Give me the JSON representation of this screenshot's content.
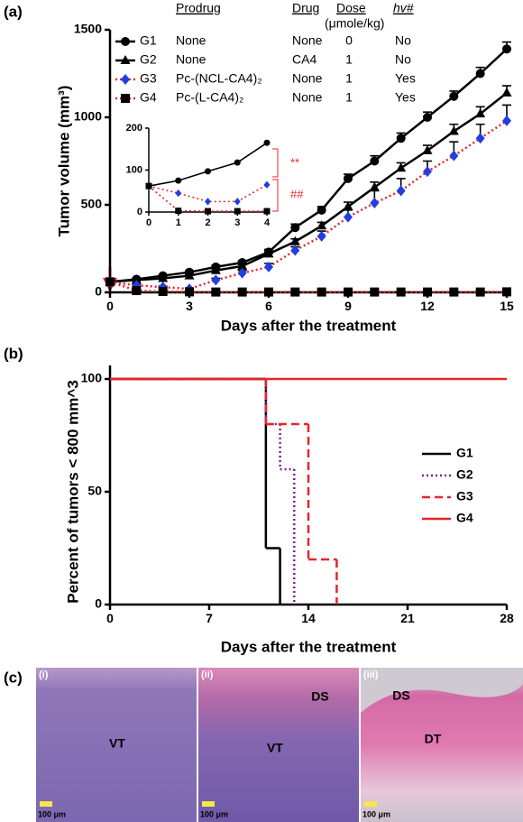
{
  "panel_labels": [
    "(a)",
    "(b)",
    "(c)"
  ],
  "chart_data": [
    {
      "type": "line",
      "xlabel": "Days after the treatment",
      "ylabel": "Tumor volume (mm³)",
      "xlim": [
        0,
        15
      ],
      "ylim": [
        0,
        1500
      ],
      "xticks": [
        0,
        3,
        6,
        9,
        12,
        15
      ],
      "yticks": [
        0,
        500,
        1000,
        1500
      ],
      "x": [
        0,
        1,
        2,
        3,
        4,
        5,
        6,
        7,
        8,
        9,
        10,
        11,
        12,
        13,
        14,
        15
      ],
      "series": [
        {
          "name": "G1",
          "color": "#000000",
          "marker": "circle",
          "marker_color": "#000000",
          "dash": "solid",
          "values": [
            60,
            75,
            95,
            115,
            145,
            170,
            230,
            370,
            470,
            650,
            750,
            880,
            1000,
            1120,
            1250,
            1390
          ],
          "errors": [
            5,
            5,
            5,
            8,
            10,
            10,
            15,
            20,
            20,
            25,
            30,
            30,
            30,
            30,
            35,
            40
          ]
        },
        {
          "name": "G2",
          "color": "#000000",
          "marker": "triangle",
          "marker_color": "#000000",
          "dash": "solid",
          "values": [
            60,
            70,
            80,
            95,
            125,
            150,
            220,
            290,
            380,
            490,
            600,
            710,
            810,
            920,
            1020,
            1140
          ],
          "errors": [
            5,
            5,
            5,
            8,
            10,
            10,
            15,
            15,
            20,
            25,
            30,
            30,
            30,
            40,
            40,
            40
          ]
        },
        {
          "name": "G3",
          "color": "#e8242a",
          "marker": "diamond",
          "marker_color": "#1f3fe0",
          "dash": "dotted",
          "values": [
            60,
            40,
            30,
            20,
            70,
            110,
            145,
            240,
            320,
            430,
            510,
            580,
            690,
            780,
            880,
            980
          ],
          "errors": [
            5,
            5,
            5,
            5,
            10,
            15,
            20,
            20,
            30,
            40,
            70,
            70,
            60,
            80,
            80,
            90
          ]
        },
        {
          "name": "G4",
          "color": "#e8242a",
          "marker": "square",
          "marker_color": "#000000",
          "dash": "dotted",
          "values": [
            60,
            10,
            5,
            3,
            2,
            2,
            2,
            2,
            2,
            2,
            2,
            2,
            2,
            2,
            2,
            3
          ],
          "errors": [
            2,
            2,
            2,
            2,
            2,
            2,
            2,
            2,
            2,
            2,
            2,
            2,
            2,
            2,
            2,
            2
          ]
        }
      ],
      "legend_table": {
        "columns": [
          "Prodrug",
          "Drug",
          "Dose",
          "hv#"
        ],
        "dose_unit": "(μmole/kg)",
        "rows": [
          [
            "None",
            "None",
            0,
            "No"
          ],
          [
            "None",
            "CA4",
            1,
            "No"
          ],
          [
            "Pc-(NCL-CA4)₂",
            "None",
            1,
            "Yes"
          ],
          [
            "Pc-(L-CA4)₂",
            "None",
            1,
            "Yes"
          ]
        ]
      }
    },
    {
      "type": "line",
      "xlim": [
        0,
        4
      ],
      "ylim": [
        0,
        200
      ],
      "xticks": [
        0,
        1,
        2,
        3,
        4
      ],
      "yticks": [
        0,
        100,
        200
      ],
      "x": [
        0,
        1,
        2,
        3,
        4
      ],
      "series": [
        {
          "color": "#000000",
          "marker": "circle",
          "marker_color": "#000000",
          "dash": "solid",
          "values": [
            62,
            75,
            97,
            118,
            165
          ]
        },
        {
          "color": "#e8242a",
          "marker": "diamond",
          "marker_color": "#1f3fe0",
          "dash": "dotted",
          "values": [
            62,
            45,
            25,
            25,
            65
          ]
        },
        {
          "color": "#e8242a",
          "marker": "square",
          "marker_color": "#000000",
          "dash": "dotted",
          "values": [
            62,
            3,
            2,
            2,
            2
          ]
        }
      ],
      "annotations": [
        "**",
        "##"
      ],
      "annotation_color": "#e8242a"
    },
    {
      "type": "step",
      "xlabel": "Days after the treatment",
      "ylabel": "Percent of tumors < 800 mm^3",
      "xlim": [
        0,
        28
      ],
      "ylim": [
        0,
        100
      ],
      "xticks": [
        0,
        7,
        14,
        21,
        28
      ],
      "yticks": [
        0,
        50,
        100
      ],
      "legend": "right",
      "series": [
        {
          "name": "G1",
          "color": "#000000",
          "dash": "solid",
          "x": [
            0,
            11,
            12
          ],
          "values": [
            100,
            25,
            0
          ]
        },
        {
          "name": "G2",
          "color": "#8b1a9e",
          "dash": "dotted",
          "x": [
            0,
            11,
            12,
            13
          ],
          "values": [
            100,
            80,
            60,
            0
          ]
        },
        {
          "name": "G3",
          "color": "#e8242a",
          "dash": "dashed",
          "x": [
            0,
            11,
            14,
            16
          ],
          "values": [
            100,
            80,
            20,
            0
          ]
        },
        {
          "name": "G4",
          "color": "#e8242a",
          "dash": "solid",
          "x": [
            0,
            28
          ],
          "values": [
            100,
            100
          ]
        }
      ]
    }
  ],
  "histology": [
    {
      "label": "(i)",
      "regions": [
        "VT"
      ],
      "scale_bar": "100 μm"
    },
    {
      "label": "(ii)",
      "regions": [
        "DS",
        "VT"
      ],
      "scale_bar": "100 μm"
    },
    {
      "label": "(iii)",
      "regions": [
        "DS",
        "DT"
      ],
      "scale_bar": "100 μm"
    }
  ]
}
